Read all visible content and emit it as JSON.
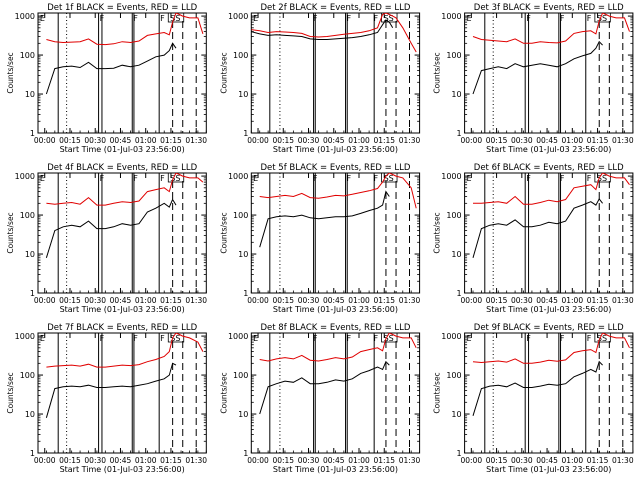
{
  "figure": {
    "background": "#ffffff",
    "axis_color": "#000000",
    "events_color": "#000000",
    "lld_color": "#e00000",
    "ylabel": "Counts/sec",
    "xlabel": "Start Time (01-Jul-03 23:56:00)",
    "ytick_labels": [
      "1",
      "10",
      "100",
      "1000"
    ],
    "xtick_labels": [
      "00:00",
      "00:15",
      "00:30",
      "00:45",
      "01:00",
      "01:15",
      "01:30"
    ],
    "flag_letters": [
      "E",
      "F",
      "F",
      "F",
      "SS"
    ]
  },
  "chart_data": [
    {
      "type": "line",
      "title": "Det 1f BLACK = Events, RED = LLD",
      "ylabel": "Counts/sec",
      "xlabel": "Start Time (01-Jul-03 23:56:00)",
      "x_unit": "minutes after 23:56:00",
      "xlim": [
        0,
        100
      ],
      "ylim": [
        1,
        1200
      ],
      "y_scale": "log",
      "x": [
        5,
        10,
        15,
        20,
        25,
        30,
        35,
        40,
        45,
        50,
        55,
        60,
        65,
        70,
        75,
        78,
        80,
        82,
        84,
        86,
        90,
        95,
        98
      ],
      "series": [
        {
          "name": "Events",
          "values": [
            10,
            45,
            50,
            52,
            48,
            65,
            45,
            45,
            46,
            55,
            50,
            55,
            70,
            90,
            100,
            130,
            200,
            150,
            null,
            null,
            null,
            null,
            null
          ]
        },
        {
          "name": "LLD",
          "values": [
            250,
            220,
            210,
            215,
            220,
            260,
            190,
            185,
            195,
            220,
            210,
            230,
            320,
            350,
            380,
            330,
            700,
            1200,
            1100,
            1000,
            900,
            900,
            350
          ]
        }
      ],
      "markers_min": [
        6,
        37,
        55,
        70,
        74,
        80,
        86,
        94
      ],
      "events_segments": [
        [
          12,
          36
        ],
        [
          38,
          56
        ],
        [
          57,
          72
        ]
      ],
      "dotted_line_min": 17
    },
    {
      "type": "line",
      "title": "Det 2f BLACK = Events, RED = LLD",
      "ylabel": "Counts/sec",
      "xlabel": "Start Time (01-Jul-03 23:56:00)",
      "x_unit": "minutes after 23:56:00",
      "xlim": [
        0,
        100
      ],
      "ylim": [
        1,
        1200
      ],
      "y_scale": "log",
      "x": [
        0,
        5,
        10,
        15,
        20,
        25,
        30,
        35,
        40,
        45,
        50,
        55,
        60,
        65,
        70,
        75,
        78,
        80,
        82,
        84,
        86,
        90,
        95,
        98
      ],
      "series": [
        {
          "name": "Events",
          "values": [
            400,
            350,
            320,
            330,
            320,
            310,
            300,
            260,
            250,
            250,
            260,
            270,
            280,
            300,
            330,
            380,
            600,
            800,
            700,
            500,
            null,
            null,
            null,
            null
          ]
        },
        {
          "name": "LLD",
          "values": [
            450,
            420,
            380,
            400,
            390,
            380,
            360,
            300,
            290,
            300,
            320,
            340,
            360,
            380,
            420,
            500,
            1100,
            1200,
            1100,
            1000,
            900,
            500,
            200,
            120
          ]
        }
      ],
      "markers_min": [
        11,
        37,
        55,
        70,
        74,
        80,
        86,
        94
      ],
      "events_segments": [
        [
          11,
          37
        ],
        [
          38,
          56
        ],
        [
          57,
          73
        ]
      ],
      "dotted_line_min": 17
    },
    {
      "type": "line",
      "title": "Det 3f BLACK = Events, RED = LLD",
      "ylabel": "Counts/sec",
      "xlabel": "Start Time (01-Jul-03 23:56:00)",
      "x_unit": "minutes after 23:56:00",
      "xlim": [
        0,
        100
      ],
      "ylim": [
        1,
        1200
      ],
      "y_scale": "log",
      "x": [
        5,
        10,
        15,
        20,
        25,
        30,
        35,
        40,
        45,
        50,
        55,
        60,
        65,
        70,
        75,
        78,
        80,
        82,
        84,
        86,
        90,
        95,
        98
      ],
      "series": [
        {
          "name": "Events",
          "values": [
            10,
            40,
            45,
            50,
            45,
            60,
            50,
            55,
            60,
            55,
            50,
            60,
            80,
            95,
            110,
            150,
            220,
            180,
            null,
            null,
            null,
            null,
            null
          ]
        },
        {
          "name": "LLD",
          "values": [
            300,
            250,
            240,
            230,
            220,
            260,
            200,
            200,
            220,
            210,
            205,
            230,
            360,
            400,
            420,
            350,
            750,
            1200,
            1100,
            1000,
            900,
            900,
            400
          ]
        }
      ],
      "markers_min": [
        7,
        37,
        55,
        70,
        74,
        80,
        86,
        94
      ],
      "events_segments": [
        [
          12,
          36
        ],
        [
          38,
          56
        ],
        [
          57,
          72
        ]
      ],
      "dotted_line_min": 17
    },
    {
      "type": "line",
      "title": "Det 4f BLACK = Events, RED = LLD",
      "ylabel": "Counts/sec",
      "xlabel": "Start Time (01-Jul-03 23:56:00)",
      "x_unit": "minutes after 23:56:00",
      "xlim": [
        0,
        100
      ],
      "ylim": [
        1,
        1200
      ],
      "y_scale": "log",
      "x": [
        5,
        10,
        15,
        20,
        25,
        30,
        35,
        40,
        45,
        50,
        55,
        60,
        65,
        70,
        75,
        78,
        80,
        82,
        84,
        86,
        90,
        95,
        98
      ],
      "series": [
        {
          "name": "Events",
          "values": [
            8,
            40,
            50,
            55,
            50,
            70,
            45,
            45,
            50,
            60,
            55,
            60,
            120,
            150,
            200,
            160,
            250,
            180,
            null,
            null,
            null,
            null,
            null
          ]
        },
        {
          "name": "LLD",
          "values": [
            200,
            190,
            200,
            210,
            190,
            280,
            180,
            180,
            200,
            220,
            210,
            230,
            400,
            450,
            500,
            400,
            800,
            1200,
            1100,
            1000,
            900,
            900,
            700
          ]
        }
      ],
      "markers_min": [
        6,
        37,
        55,
        70,
        74,
        80,
        86,
        94
      ],
      "events_segments": [
        [
          12,
          36
        ],
        [
          38,
          56
        ],
        [
          57,
          72
        ]
      ],
      "dotted_line_min": 17
    },
    {
      "type": "line",
      "title": "Det 5f BLACK = Events, RED = LLD",
      "ylabel": "Counts/sec",
      "xlabel": "Start Time (01-Jul-03 23:56:00)",
      "x_unit": "minutes after 23:56:00",
      "xlim": [
        0,
        100
      ],
      "ylim": [
        1,
        1200
      ],
      "y_scale": "log",
      "x": [
        5,
        10,
        15,
        20,
        25,
        30,
        35,
        40,
        45,
        50,
        55,
        60,
        65,
        70,
        75,
        78,
        80,
        82,
        84,
        86,
        90,
        95,
        98
      ],
      "series": [
        {
          "name": "Events",
          "values": [
            15,
            80,
            90,
            95,
            90,
            100,
            85,
            80,
            85,
            90,
            90,
            95,
            110,
            130,
            150,
            180,
            400,
            300,
            null,
            null,
            null,
            null,
            null
          ]
        },
        {
          "name": "LLD",
          "values": [
            300,
            280,
            300,
            320,
            300,
            360,
            280,
            270,
            290,
            320,
            310,
            340,
            380,
            420,
            480,
            700,
            1000,
            1200,
            1100,
            1000,
            900,
            500,
            150
          ]
        }
      ],
      "markers_min": [
        11,
        37,
        55,
        70,
        74,
        80,
        86,
        94
      ],
      "events_segments": [
        [
          11,
          37
        ],
        [
          38,
          56
        ],
        [
          57,
          73
        ]
      ],
      "dotted_line_min": 17
    },
    {
      "type": "line",
      "title": "Det 6f BLACK = Events, RED = LLD",
      "ylabel": "Counts/sec",
      "xlabel": "Start Time (01-Jul-03 23:56:00)",
      "x_unit": "minutes after 23:56:00",
      "xlim": [
        0,
        100
      ],
      "ylim": [
        1,
        1200
      ],
      "y_scale": "log",
      "x": [
        5,
        10,
        15,
        20,
        25,
        30,
        35,
        40,
        45,
        50,
        55,
        60,
        65,
        70,
        75,
        78,
        80,
        82,
        84,
        86,
        90,
        95,
        98
      ],
      "series": [
        {
          "name": "Events",
          "values": [
            8,
            45,
            55,
            60,
            55,
            75,
            50,
            50,
            55,
            65,
            60,
            70,
            150,
            180,
            220,
            180,
            260,
            200,
            null,
            null,
            null,
            null,
            null
          ]
        },
        {
          "name": "LLD",
          "values": [
            200,
            200,
            210,
            220,
            200,
            300,
            190,
            190,
            210,
            240,
            220,
            250,
            500,
            550,
            600,
            450,
            900,
            1200,
            1100,
            1000,
            900,
            900,
            600
          ]
        }
      ],
      "markers_min": [
        7,
        37,
        55,
        70,
        74,
        80,
        86,
        94
      ],
      "events_segments": [
        [
          12,
          36
        ],
        [
          38,
          56
        ],
        [
          57,
          72
        ]
      ],
      "dotted_line_min": 17
    },
    {
      "type": "line",
      "title": "Det 7f BLACK = Events, RED = LLD",
      "ylabel": "Counts/sec",
      "xlabel": "Start Time (01-Jul-03 23:56:00)",
      "x_unit": "minutes after 23:56:00",
      "xlim": [
        0,
        100
      ],
      "ylim": [
        1,
        1200
      ],
      "y_scale": "log",
      "x": [
        5,
        10,
        15,
        20,
        25,
        30,
        35,
        40,
        45,
        50,
        55,
        60,
        65,
        70,
        75,
        78,
        80,
        82,
        84,
        86,
        90,
        95,
        98
      ],
      "series": [
        {
          "name": "Events",
          "values": [
            8,
            45,
            50,
            52,
            50,
            55,
            48,
            48,
            50,
            52,
            50,
            55,
            60,
            70,
            80,
            100,
            200,
            180,
            null,
            null,
            null,
            null,
            null
          ]
        },
        {
          "name": "LLD",
          "values": [
            160,
            170,
            175,
            180,
            170,
            190,
            160,
            160,
            170,
            180,
            175,
            185,
            220,
            250,
            300,
            400,
            900,
            1200,
            1100,
            1000,
            900,
            700,
            400
          ]
        }
      ],
      "markers_min": [
        6,
        37,
        55,
        70,
        74,
        80,
        86,
        94
      ],
      "events_segments": [
        [
          12,
          36
        ],
        [
          38,
          56
        ],
        [
          57,
          72
        ]
      ],
      "dotted_line_min": 17
    },
    {
      "type": "line",
      "title": "Det 8f BLACK = Events, RED = LLD",
      "ylabel": "Counts/sec",
      "xlabel": "Start Time (01-Jul-03 23:56:00)",
      "x_unit": "minutes after 23:56:00",
      "xlim": [
        0,
        100
      ],
      "ylim": [
        1,
        1200
      ],
      "y_scale": "log",
      "x": [
        5,
        10,
        15,
        20,
        25,
        30,
        35,
        40,
        45,
        50,
        55,
        60,
        65,
        70,
        75,
        78,
        80,
        82,
        84,
        86,
        90,
        95,
        98
      ],
      "series": [
        {
          "name": "Events",
          "values": [
            10,
            50,
            60,
            70,
            65,
            85,
            60,
            60,
            65,
            75,
            70,
            80,
            110,
            130,
            160,
            140,
            220,
            180,
            null,
            null,
            null,
            null,
            null
          ]
        },
        {
          "name": "LLD",
          "values": [
            250,
            230,
            260,
            280,
            260,
            320,
            240,
            230,
            250,
            280,
            260,
            290,
            400,
            450,
            500,
            420,
            850,
            1200,
            1100,
            1000,
            900,
            900,
            500
          ]
        }
      ],
      "markers_min": [
        11,
        37,
        55,
        70,
        74,
        80,
        86,
        94
      ],
      "events_segments": [
        [
          11,
          37
        ],
        [
          38,
          56
        ],
        [
          57,
          73
        ]
      ],
      "dotted_line_min": 17
    },
    {
      "type": "line",
      "title": "Det 9f BLACK = Events, RED = LLD",
      "ylabel": "Counts/sec",
      "xlabel": "Start Time (01-Jul-03 23:56:00)",
      "x_unit": "minutes after 23:56:00",
      "xlim": [
        0,
        100
      ],
      "ylim": [
        1,
        1200
      ],
      "y_scale": "log",
      "x": [
        5,
        10,
        15,
        20,
        25,
        30,
        35,
        40,
        45,
        50,
        55,
        60,
        65,
        70,
        75,
        78,
        80,
        82,
        84,
        86,
        90,
        95,
        98
      ],
      "series": [
        {
          "name": "Events",
          "values": [
            9,
            45,
            52,
            55,
            50,
            62,
            48,
            48,
            52,
            58,
            55,
            60,
            90,
            110,
            140,
            120,
            220,
            180,
            null,
            null,
            null,
            null,
            null
          ]
        },
        {
          "name": "LLD",
          "values": [
            220,
            210,
            220,
            230,
            215,
            260,
            200,
            200,
            215,
            240,
            225,
            245,
            380,
            420,
            450,
            380,
            800,
            1200,
            1100,
            1000,
            900,
            900,
            500
          ]
        }
      ],
      "markers_min": [
        7,
        37,
        55,
        70,
        74,
        80,
        86,
        94
      ],
      "events_segments": [
        [
          12,
          36
        ],
        [
          38,
          56
        ],
        [
          57,
          72
        ]
      ],
      "dotted_line_min": 17
    }
  ]
}
